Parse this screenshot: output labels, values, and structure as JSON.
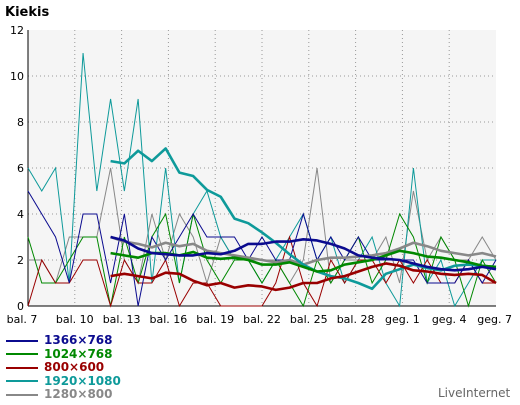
{
  "chart_data": {
    "type": "line",
    "ylabel": "Kiekis",
    "ylim": [
      0,
      12
    ],
    "yticks": [
      0,
      2,
      4,
      6,
      8,
      10,
      12
    ],
    "grid": true,
    "legend_position": "bottom-left",
    "x_ticks": [
      "bal. 7",
      "bal. 10",
      "bal. 13",
      "bal. 16",
      "bal. 19",
      "bal. 22",
      "bal. 25",
      "bal. 28",
      "geg. 1",
      "geg. 4",
      "geg. 7"
    ],
    "series": [
      {
        "name": "1366×768",
        "color": "#0b0b8f",
        "daily": [
          5,
          4,
          3,
          1,
          4,
          4,
          1,
          4,
          0,
          3,
          2,
          3,
          4,
          3,
          3,
          3,
          2,
          3,
          2,
          2,
          4,
          2,
          3,
          2,
          3,
          2,
          2,
          2,
          2,
          1,
          1,
          1,
          2,
          1,
          2
        ],
        "trend": [
          null,
          null,
          null,
          null,
          null,
          null,
          3.0,
          2.85,
          2.5,
          2.3,
          2.25,
          2.2,
          2.2,
          2.3,
          2.25,
          2.4,
          2.7,
          2.7,
          2.8,
          2.8,
          2.9,
          2.85,
          2.7,
          2.5,
          2.2,
          2.1,
          2.05,
          2.0,
          1.85,
          1.7,
          1.6,
          1.55,
          1.6,
          1.7,
          1.6
        ]
      },
      {
        "name": "1024×768",
        "color": "#008800",
        "daily": [
          3,
          1,
          1,
          2,
          3,
          3,
          0,
          3,
          1,
          3,
          4,
          1,
          4,
          2,
          1,
          2,
          2,
          1,
          2,
          1,
          0,
          2,
          1,
          2,
          3,
          1,
          2,
          4,
          3,
          1,
          3,
          2,
          0,
          2,
          1
        ],
        "trend": [
          null,
          null,
          null,
          null,
          null,
          null,
          2.3,
          2.2,
          2.1,
          2.3,
          2.3,
          2.2,
          2.35,
          2.1,
          2.05,
          2.1,
          2.0,
          1.8,
          1.8,
          1.9,
          1.7,
          1.5,
          1.55,
          1.8,
          1.9,
          2.0,
          2.2,
          2.4,
          2.3,
          2.15,
          2.1,
          2.0,
          1.9,
          1.75,
          1.7
        ]
      },
      {
        "name": "800×600",
        "color": "#990000",
        "daily": [
          0,
          2,
          1,
          1,
          2,
          2,
          0,
          2,
          1,
          1,
          2,
          0,
          1,
          1,
          0,
          0,
          0,
          0,
          1,
          3,
          1,
          0,
          2,
          1,
          2,
          2,
          1,
          2,
          1,
          2,
          1,
          1,
          2,
          1,
          1
        ],
        "trend": [
          null,
          null,
          null,
          null,
          null,
          null,
          1.3,
          1.4,
          1.3,
          1.2,
          1.45,
          1.4,
          1.1,
          0.9,
          1.0,
          0.8,
          0.9,
          0.85,
          0.7,
          0.8,
          1.0,
          1.0,
          1.2,
          1.3,
          1.5,
          1.7,
          1.85,
          1.75,
          1.55,
          1.5,
          1.4,
          1.35,
          1.4,
          1.35,
          1.0
        ]
      },
      {
        "name": "1920×1080",
        "color": "#0e9a9a",
        "daily": [
          6,
          5,
          6,
          1,
          11,
          5,
          9,
          5,
          9,
          1,
          6,
          1,
          4,
          5,
          3,
          2,
          2,
          1,
          2,
          3,
          4,
          2,
          3,
          1,
          2,
          3,
          1,
          0,
          6,
          1,
          2,
          0,
          1,
          2,
          2
        ],
        "trend": [
          null,
          null,
          null,
          null,
          null,
          null,
          6.3,
          6.2,
          6.75,
          6.3,
          6.85,
          5.8,
          5.65,
          5.05,
          4.75,
          3.8,
          3.6,
          3.2,
          2.75,
          2.25,
          1.8,
          1.5,
          1.3,
          1.2,
          1.0,
          0.75,
          1.4,
          1.6,
          1.8,
          1.65,
          1.55,
          1.75,
          1.8,
          1.75,
          1.7
        ]
      },
      {
        "name": "1280×800",
        "color": "#888888",
        "daily": [
          2,
          2,
          1,
          3,
          3,
          3,
          6,
          2,
          1,
          4,
          2,
          4,
          3,
          1,
          3,
          2,
          2,
          2,
          2,
          1,
          2,
          6,
          1,
          2,
          2,
          2,
          3,
          1,
          5,
          2,
          3,
          2,
          2,
          3,
          2
        ],
        "trend": [
          null,
          null,
          null,
          null,
          null,
          null,
          3.0,
          2.8,
          2.7,
          2.55,
          2.75,
          2.6,
          2.7,
          2.4,
          2.3,
          2.2,
          2.1,
          2.0,
          1.9,
          2.0,
          1.8,
          2.0,
          2.1,
          2.1,
          2.15,
          2.2,
          2.3,
          2.5,
          2.75,
          2.6,
          2.4,
          2.3,
          2.2,
          2.3,
          2.15
        ]
      }
    ]
  },
  "brand": "LiveInternet"
}
